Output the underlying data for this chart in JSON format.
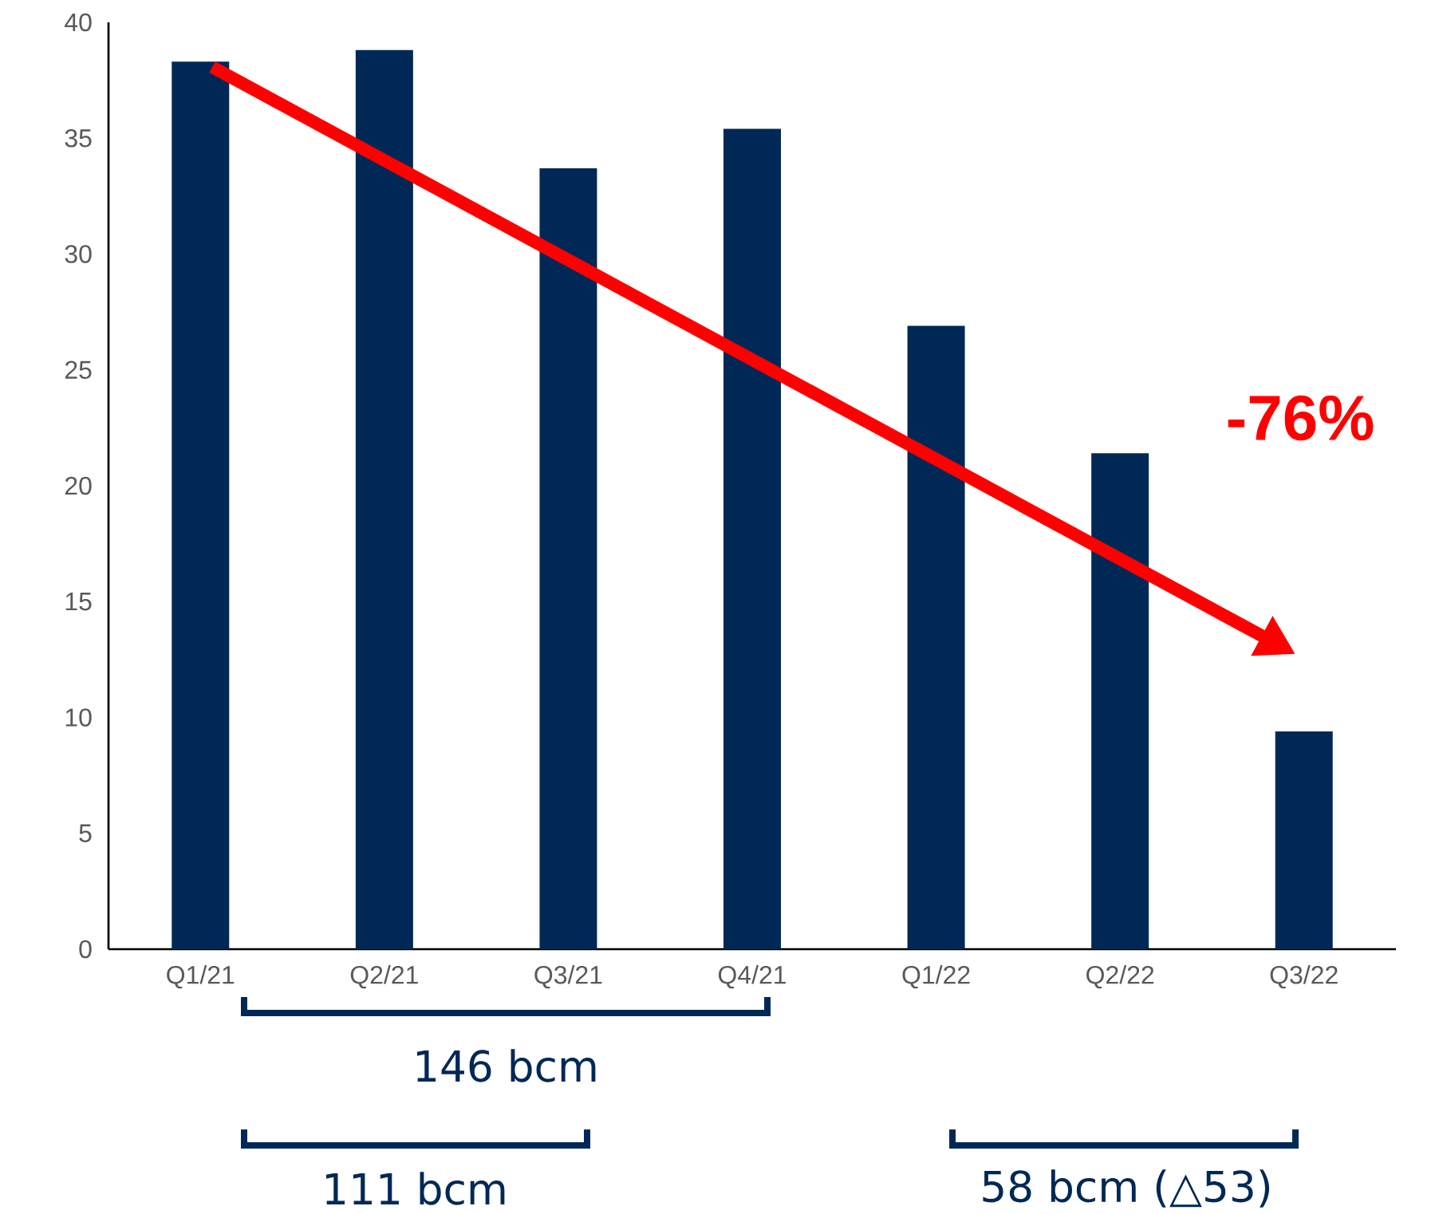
{
  "chart_data": {
    "type": "bar",
    "categories": [
      "Q1/21",
      "Q2/21",
      "Q3/21",
      "Q4/21",
      "Q1/22",
      "Q2/22",
      "Q3/22"
    ],
    "values": [
      38.3,
      38.8,
      33.7,
      35.4,
      26.9,
      21.4,
      9.4
    ],
    "color": "#002856",
    "ylim": [
      0,
      40
    ],
    "yticks": [
      0,
      5,
      10,
      15,
      20,
      25,
      30,
      35,
      40
    ],
    "grid": false,
    "annotations": [
      "-76%",
      "146 bcm",
      "111 bcm",
      "58 bcm (△53)"
    ]
  }
}
